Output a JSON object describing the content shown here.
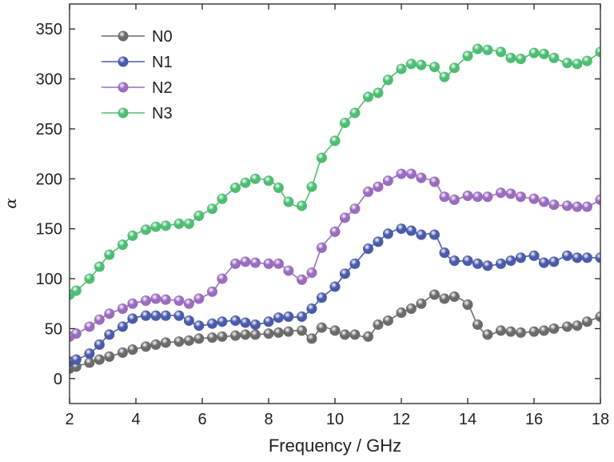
{
  "chart_data": {
    "type": "line",
    "title": "",
    "xlabel": "Frequency / GHz",
    "ylabel": "α",
    "xlim": [
      2,
      18
    ],
    "ylim": [
      -25,
      375
    ],
    "xticks": [
      2,
      4,
      6,
      8,
      10,
      12,
      14,
      16,
      18
    ],
    "yticks": [
      0,
      50,
      100,
      150,
      200,
      250,
      300,
      350
    ],
    "legend_position": "top-left",
    "grid": false,
    "series": [
      {
        "name": "N0",
        "color": "#6b6b6b",
        "x": [
          2.0,
          2.2,
          2.6,
          2.9,
          3.2,
          3.6,
          3.9,
          4.3,
          4.6,
          4.9,
          5.3,
          5.6,
          5.9,
          6.3,
          6.6,
          7.0,
          7.3,
          7.6,
          8.0,
          8.3,
          8.6,
          9.0,
          9.3,
          9.6,
          10.0,
          10.3,
          10.6,
          11.0,
          11.3,
          11.6,
          12.0,
          12.3,
          12.6,
          13.0,
          13.3,
          13.6,
          14.0,
          14.3,
          14.6,
          15.0,
          15.3,
          15.6,
          16.0,
          16.3,
          16.6,
          17.0,
          17.3,
          17.6,
          18.0
        ],
        "y": [
          10,
          12,
          16,
          19,
          22,
          26,
          29,
          32,
          34,
          36,
          37,
          38,
          40,
          41,
          42,
          43,
          44,
          44,
          45,
          46,
          47,
          48,
          40,
          51,
          48,
          44,
          44,
          42,
          54,
          58,
          66,
          70,
          75,
          84,
          80,
          82,
          74,
          54,
          44,
          48,
          47,
          46,
          47,
          48,
          50,
          52,
          53,
          57,
          62
        ]
      },
      {
        "name": "N1",
        "color": "#4a5bab",
        "x": [
          2.0,
          2.2,
          2.6,
          2.9,
          3.2,
          3.6,
          3.9,
          4.3,
          4.6,
          4.9,
          5.3,
          5.6,
          5.9,
          6.3,
          6.6,
          7.0,
          7.3,
          7.6,
          8.0,
          8.3,
          8.6,
          9.0,
          9.3,
          9.6,
          10.0,
          10.3,
          10.6,
          11.0,
          11.3,
          11.6,
          12.0,
          12.3,
          12.6,
          13.0,
          13.3,
          13.6,
          14.0,
          14.3,
          14.6,
          15.0,
          15.3,
          15.6,
          16.0,
          16.3,
          16.6,
          17.0,
          17.3,
          17.6,
          18.0
        ],
        "y": [
          17,
          19,
          25,
          34,
          44,
          52,
          60,
          63,
          63,
          63,
          63,
          58,
          53,
          55,
          57,
          58,
          56,
          54,
          57,
          61,
          62,
          62,
          70,
          81,
          92,
          105,
          115,
          130,
          137,
          145,
          150,
          148,
          144,
          144,
          126,
          118,
          118,
          115,
          113,
          115,
          118,
          121,
          123,
          116,
          117,
          123,
          121,
          121,
          121
        ]
      },
      {
        "name": "N2",
        "color": "#9a6bbf",
        "x": [
          2.0,
          2.2,
          2.6,
          2.9,
          3.2,
          3.6,
          3.9,
          4.3,
          4.6,
          4.9,
          5.3,
          5.6,
          5.9,
          6.3,
          6.6,
          7.0,
          7.3,
          7.6,
          8.0,
          8.3,
          8.6,
          9.0,
          9.3,
          9.6,
          10.0,
          10.3,
          10.6,
          11.0,
          11.3,
          11.6,
          12.0,
          12.3,
          12.6,
          13.0,
          13.3,
          13.6,
          14.0,
          14.3,
          14.6,
          15.0,
          15.3,
          15.6,
          16.0,
          16.3,
          16.6,
          17.0,
          17.3,
          17.6,
          18.0
        ],
        "y": [
          42,
          45,
          52,
          59,
          65,
          70,
          75,
          78,
          80,
          79,
          78,
          75,
          80,
          87,
          100,
          115,
          117,
          116,
          115,
          115,
          108,
          99,
          106,
          131,
          147,
          161,
          170,
          187,
          192,
          198,
          205,
          205,
          201,
          197,
          182,
          179,
          183,
          182,
          182,
          186,
          185,
          182,
          180,
          177,
          174,
          173,
          172,
          172,
          179
        ]
      },
      {
        "name": "N3",
        "color": "#4dbd74",
        "x": [
          2.0,
          2.2,
          2.6,
          2.9,
          3.2,
          3.6,
          3.9,
          4.3,
          4.6,
          4.9,
          5.3,
          5.6,
          5.9,
          6.3,
          6.6,
          7.0,
          7.3,
          7.6,
          8.0,
          8.3,
          8.6,
          9.0,
          9.3,
          9.6,
          10.0,
          10.3,
          10.6,
          11.0,
          11.3,
          11.6,
          12.0,
          12.3,
          12.6,
          13.0,
          13.3,
          13.6,
          14.0,
          14.3,
          14.6,
          15.0,
          15.3,
          15.6,
          16.0,
          16.3,
          16.6,
          17.0,
          17.3,
          17.6,
          18.0
        ],
        "y": [
          84,
          88,
          100,
          112,
          124,
          134,
          143,
          149,
          152,
          153,
          155,
          155,
          163,
          170,
          180,
          191,
          196,
          200,
          198,
          191,
          177,
          173,
          192,
          221,
          238,
          256,
          266,
          282,
          286,
          299,
          310,
          315,
          314,
          312,
          302,
          311,
          323,
          330,
          329,
          327,
          321,
          320,
          326,
          325,
          321,
          316,
          315,
          318,
          327
        ]
      }
    ]
  }
}
